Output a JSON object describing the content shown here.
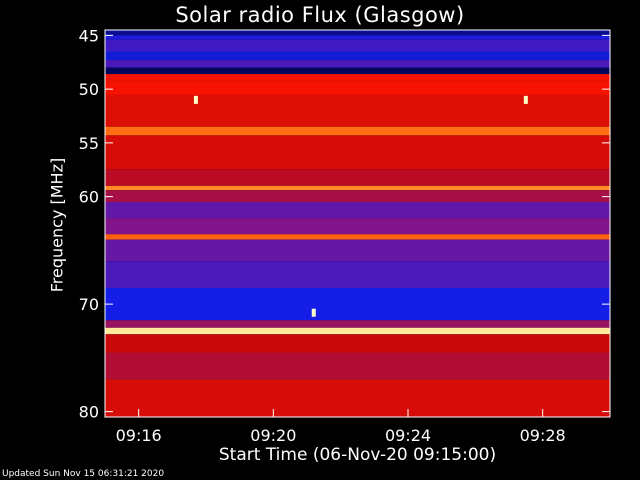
{
  "chart_data": {
    "type": "heatmap",
    "title": "Solar radio Flux (Glasgow)",
    "xlabel": "Start Time (06-Nov-20 09:15:00)",
    "ylabel": "Frequency [MHz]",
    "x_ticks": [
      "09:16",
      "09:20",
      "09:24",
      "09:28"
    ],
    "x_tick_minutes": [
      1,
      5,
      9,
      13
    ],
    "xlim_minutes": [
      0,
      15
    ],
    "y_ticks": [
      45,
      50,
      55,
      60,
      70,
      80
    ],
    "ylim_mhz": [
      44.5,
      80.5
    ],
    "bands": [
      {
        "from": 44.5,
        "to": 45.0,
        "level": 0.1
      },
      {
        "from": 45.0,
        "to": 45.4,
        "level": 0.22
      },
      {
        "from": 45.4,
        "to": 46.5,
        "level": 0.28
      },
      {
        "from": 46.5,
        "to": 47.3,
        "level": 0.18
      },
      {
        "from": 47.3,
        "to": 48.0,
        "level": 0.3
      },
      {
        "from": 48.0,
        "to": 48.6,
        "level": 0.04
      },
      {
        "from": 48.6,
        "to": 49.3,
        "level": 0.65
      },
      {
        "from": 49.3,
        "to": 50.5,
        "level": 0.66
      },
      {
        "from": 50.5,
        "to": 53.5,
        "level": 0.6
      },
      {
        "from": 53.5,
        "to": 54.3,
        "level": 0.82
      },
      {
        "from": 54.3,
        "to": 57.5,
        "level": 0.58
      },
      {
        "from": 57.5,
        "to": 59.0,
        "level": 0.52
      },
      {
        "from": 59.0,
        "to": 59.4,
        "level": 0.85
      },
      {
        "from": 59.4,
        "to": 60.5,
        "level": 0.48
      },
      {
        "from": 60.5,
        "to": 62.0,
        "level": 0.34
      },
      {
        "from": 62.0,
        "to": 63.5,
        "level": 0.4
      },
      {
        "from": 63.5,
        "to": 64.0,
        "level": 0.8
      },
      {
        "from": 64.0,
        "to": 66.0,
        "level": 0.35
      },
      {
        "from": 66.0,
        "to": 68.5,
        "level": 0.3
      },
      {
        "from": 68.5,
        "to": 71.5,
        "level": 0.2
      },
      {
        "from": 71.5,
        "to": 72.2,
        "level": 0.45
      },
      {
        "from": 72.2,
        "to": 72.8,
        "level": 0.97
      },
      {
        "from": 72.8,
        "to": 74.5,
        "level": 0.55
      },
      {
        "from": 74.5,
        "to": 77.0,
        "level": 0.5
      },
      {
        "from": 77.0,
        "to": 80.5,
        "level": 0.58
      }
    ],
    "spots": [
      {
        "minute": 2.7,
        "mhz": 51.0
      },
      {
        "minute": 12.5,
        "mhz": 51.0
      },
      {
        "minute": 6.2,
        "mhz": 70.8
      }
    ],
    "grid": false,
    "colormap": "blue-purple-red-orange-yellow"
  },
  "footer": "Updated Sun Nov 15 06:31:21 2020"
}
